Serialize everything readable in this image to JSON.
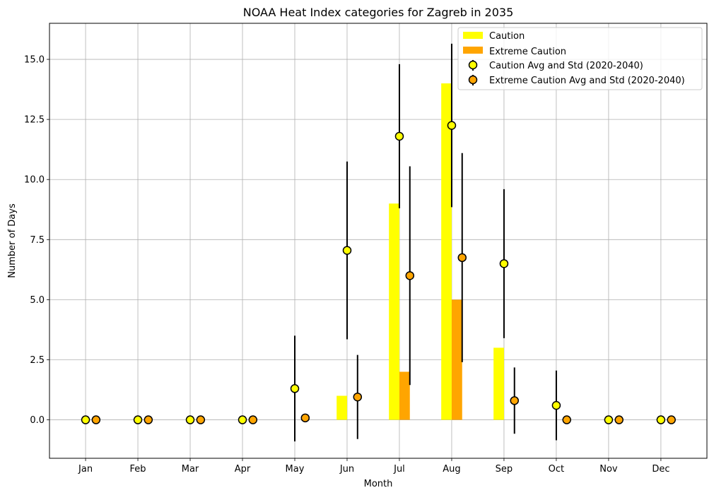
{
  "chart_data": {
    "type": "bar",
    "title": "NOAA Heat Index categories for Zagreb in 2035",
    "xlabel": "Month",
    "ylabel": "Number of Days",
    "categories": [
      "Jan",
      "Feb",
      "Mar",
      "Apr",
      "May",
      "Jun",
      "Jul",
      "Aug",
      "Sep",
      "Oct",
      "Nov",
      "Dec"
    ],
    "ylim": [
      -1.6,
      16.5
    ],
    "yticks": [
      "0.0",
      "2.5",
      "5.0",
      "7.5",
      "10.0",
      "12.5",
      "15.0"
    ],
    "grid": true,
    "legend_position": "top-right",
    "bar_series": [
      {
        "name": "Caution",
        "color": "#ffff00",
        "values": [
          0,
          0,
          0,
          0,
          0,
          1,
          9,
          14,
          3,
          0,
          0,
          0
        ]
      },
      {
        "name": "Extreme Caution",
        "color": "#ffa500",
        "values": [
          0,
          0,
          0,
          0,
          0,
          0,
          2,
          5,
          0,
          0,
          0,
          0
        ]
      }
    ],
    "point_series": [
      {
        "name": "Caution Avg and Std (2020-2040)",
        "color": "#ffff00",
        "means": [
          0,
          0,
          0,
          0,
          1.3,
          7.05,
          11.8,
          12.25,
          6.5,
          0.6,
          0,
          0
        ],
        "stds": [
          0,
          0,
          0,
          0,
          2.2,
          3.7,
          3.0,
          3.4,
          3.1,
          1.45,
          0,
          0
        ]
      },
      {
        "name": "Extreme Caution Avg and Std (2020-2040)",
        "color": "#ffa500",
        "means": [
          0,
          0,
          0,
          0,
          0.08,
          0.95,
          6.0,
          6.75,
          0.8,
          0,
          0,
          0
        ],
        "stds": [
          0,
          0,
          0,
          0,
          0.12,
          1.75,
          4.55,
          4.35,
          1.38,
          0,
          0,
          0
        ]
      }
    ]
  }
}
